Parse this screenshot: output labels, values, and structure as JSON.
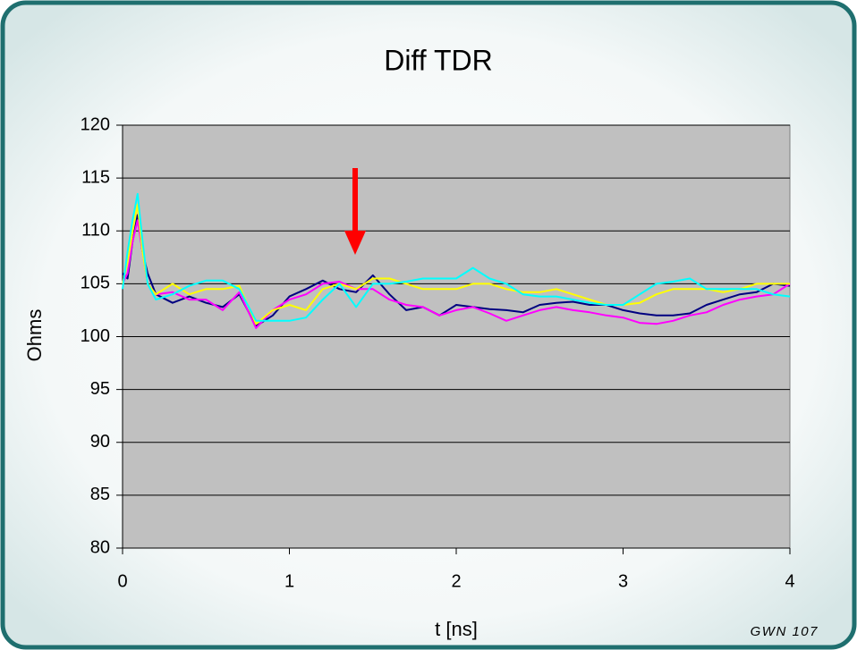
{
  "chart_data": {
    "type": "line",
    "title": "Diff TDR",
    "xlabel": "t [ns]",
    "ylabel": "Ohms",
    "annotation": "GWN 107",
    "x": [
      0,
      0.03,
      0.06,
      0.09,
      0.12,
      0.15,
      0.2,
      0.3,
      0.4,
      0.5,
      0.6,
      0.7,
      0.8,
      0.9,
      1.0,
      1.1,
      1.2,
      1.3,
      1.4,
      1.5,
      1.6,
      1.7,
      1.8,
      1.9,
      2.0,
      2.1,
      2.2,
      2.3,
      2.4,
      2.5,
      2.6,
      2.7,
      2.8,
      2.9,
      3.0,
      3.1,
      3.2,
      3.3,
      3.4,
      3.5,
      3.6,
      3.7,
      3.8,
      3.9,
      4.0
    ],
    "series": [
      {
        "color": "#000080",
        "values": [
          106,
          105.5,
          109,
          111.5,
          108,
          106,
          104,
          103.2,
          103.8,
          103.2,
          102.8,
          104,
          101,
          102,
          103.8,
          104.5,
          105.3,
          104.5,
          104.2,
          105.8,
          104,
          102.5,
          102.8,
          102,
          103,
          102.8,
          102.6,
          102.5,
          102.3,
          103,
          103.2,
          103.3,
          103,
          103,
          102.5,
          102.2,
          102,
          102,
          102.2,
          103,
          103.5,
          104,
          104.2,
          105,
          104.8
        ]
      },
      {
        "color": "#ff00ff",
        "values": [
          105,
          106,
          109,
          111,
          108,
          105,
          104,
          104.2,
          103.5,
          103.5,
          102.5,
          104.2,
          100.8,
          102.5,
          103.5,
          104,
          105,
          105.2,
          104.5,
          104.5,
          103.5,
          103,
          102.8,
          102,
          102.5,
          102.8,
          102.2,
          101.5,
          102,
          102.5,
          102.8,
          102.5,
          102.3,
          102,
          101.8,
          101.3,
          101.2,
          101.5,
          102,
          102.3,
          103,
          103.5,
          103.8,
          104,
          105
        ]
      },
      {
        "color": "#ffff00",
        "values": [
          105,
          107,
          110,
          112.5,
          108,
          105,
          104,
          105,
          104,
          104.5,
          104.5,
          104.8,
          101.2,
          102.5,
          103,
          102.5,
          104.5,
          105,
          104.5,
          105.5,
          105.5,
          105,
          104.5,
          104.5,
          104.5,
          105,
          105,
          104.5,
          104.2,
          104.2,
          104.5,
          104,
          103.5,
          103,
          103,
          103.2,
          104,
          104.5,
          104.5,
          104.5,
          104.2,
          104.5,
          105,
          105,
          105
        ]
      },
      {
        "color": "#00ffff",
        "values": [
          104.5,
          108,
          111,
          113.5,
          109,
          105,
          103.5,
          104,
          104.8,
          105.3,
          105.3,
          104.5,
          101.5,
          101.5,
          101.5,
          101.8,
          103.5,
          105,
          102.8,
          105,
          105,
          105.2,
          105.5,
          105.5,
          105.5,
          106.5,
          105.5,
          105,
          104,
          103.8,
          103.8,
          103.5,
          103.2,
          103,
          103,
          104,
          105,
          105.2,
          105.5,
          104.5,
          104.5,
          104.5,
          104.5,
          104,
          103.8
        ]
      }
    ],
    "xlim": [
      0,
      4
    ],
    "xticks": [
      0,
      1,
      2,
      3,
      4
    ],
    "ylim": [
      80,
      120
    ],
    "yticks": [
      80,
      85,
      90,
      95,
      100,
      105,
      110,
      115,
      120
    ],
    "grid": true,
    "plot_background": "#c0c0c0"
  }
}
